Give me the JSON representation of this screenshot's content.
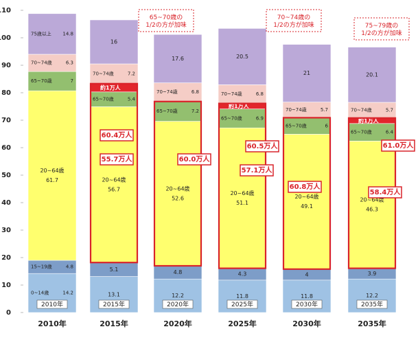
{
  "chart_data": {
    "type": "stacked_bar",
    "categories": [
      "2010年",
      "2015年",
      "2020年",
      "2025年",
      "2030年",
      "2035年"
    ],
    "series": [
      {
        "name": "0~14歳",
        "color": "#9fc2e4",
        "values": [
          14.2,
          13.1,
          12.2,
          11.8,
          11.8,
          12.2
        ]
      },
      {
        "name": "15~19歳",
        "color": "#7d9dc8",
        "values": [
          4.8,
          5.1,
          4.8,
          4.3,
          4.0,
          3.9
        ]
      },
      {
        "name": "20~64歳",
        "color": "#ffff6e",
        "values": [
          61.7,
          56.7,
          52.6,
          51.1,
          49.1,
          46.3
        ]
      },
      {
        "name": "65~70歳",
        "color": "#93bf6f",
        "values": [
          7.0,
          5.4,
          7.2,
          6.9,
          6.0,
          6.4
        ]
      },
      {
        "name": "約1万人",
        "color": "#e2262c",
        "values": [
          null,
          3,
          null,
          2,
          null,
          2
        ]
      },
      {
        "name": "70~74歳",
        "color": "#f5cdc6",
        "values": [
          6.3,
          7.2,
          6.8,
          6.8,
          5.7,
          5.7
        ]
      },
      {
        "name": "75歳以上",
        "color": "#bba9d8",
        "values": [
          14.8,
          16.0,
          17.6,
          20.5,
          21.0,
          20.1
        ]
      }
    ],
    "ylim": [
      0,
      110
    ],
    "yticks": [
      0,
      10,
      20,
      30,
      40,
      50,
      60,
      70,
      80,
      90,
      100,
      110
    ],
    "annotations": [
      "60.4万人",
      "55.7万人",
      "60.0万人",
      "60.5万人",
      "57.1万人",
      "60.8万人",
      "61.0万人",
      "58.4万人"
    ],
    "callouts": [
      "65~70歳の\n1/2の方が加味",
      "70~74歳の\n1/2の方が加味",
      "75~79歳の\n1/2の方が加味"
    ]
  }
}
